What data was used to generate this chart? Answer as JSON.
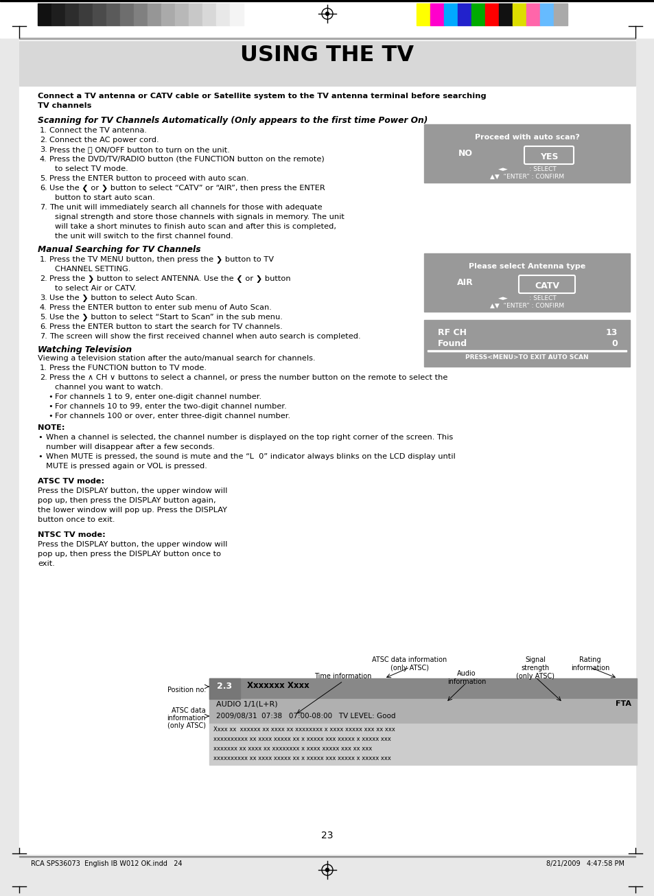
{
  "page_bg": "#e8e8e8",
  "content_bg": "#ffffff",
  "header_bg": "#d3d3d3",
  "title": "USING THE TV",
  "page_number": "23",
  "footer_text": "RCA SPS36073  English IB W012 OK.indd   24",
  "footer_right": "8/21/2009   4:47:58 PM",
  "grayscale_colors": [
    "#111111",
    "#1e1e1e",
    "#2d2d2d",
    "#3c3c3c",
    "#4b4b4b",
    "#5a5a5a",
    "#6e6e6e",
    "#808080",
    "#969696",
    "#aaaaaa",
    "#b8b8b8",
    "#c8c8c8",
    "#d8d8d8",
    "#e8e8e8",
    "#f4f4f4"
  ],
  "color_bars": [
    "#ffff00",
    "#ff00cc",
    "#00aaff",
    "#2222cc",
    "#00aa00",
    "#ff0000",
    "#111111",
    "#dddd00",
    "#ff66aa",
    "#66bbff",
    "#aaaaaa"
  ],
  "box1_bg": "#999999",
  "box2_bg": "#999999",
  "box3_bg": "#999999",
  "diagram_top_bg": "#888888",
  "diagram_mid_bg": "#b0b0b0",
  "diagram_bot_bg": "#cccccc",
  "diagram_ch_bg": "#777777"
}
